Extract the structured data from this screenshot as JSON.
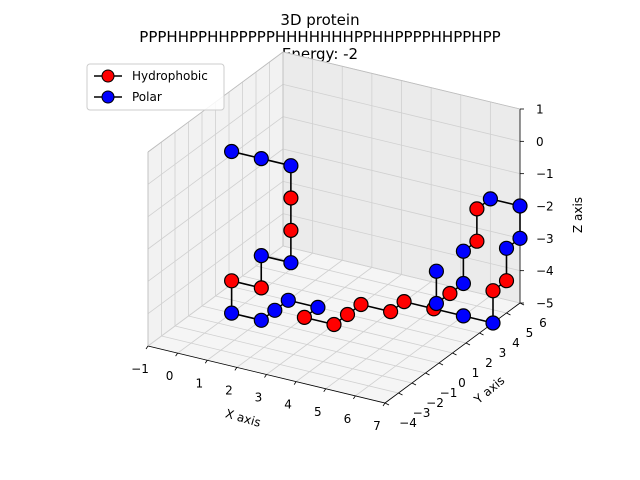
{
  "chart_data": {
    "type": "scatter",
    "title": "3D protein",
    "sequence": "PPPHHPPHHPPPPPHHHHHHHPPHHPPPPHHPPHPP",
    "subtitle": "Energy: -2",
    "xlabel": "X axis",
    "ylabel": "Y axis",
    "zlabel": "Z axis",
    "xlim": [
      -1,
      7
    ],
    "ylim": [
      -4,
      6
    ],
    "zlim": [
      -5,
      1
    ],
    "xticks": [
      "−1",
      "0",
      "1",
      "2",
      "3",
      "4",
      "5",
      "6",
      "7"
    ],
    "yticks": [
      "−4",
      "−3",
      "−2",
      "−1",
      "0",
      "1",
      "2",
      "3",
      "4",
      "5",
      "6"
    ],
    "zticks": [
      "−5",
      "−4",
      "−3",
      "−2",
      "−1",
      "0",
      "1"
    ],
    "legend": {
      "placement": "top-left",
      "entries": [
        {
          "label": "Hydrophobic",
          "color": "#ff0000"
        },
        {
          "label": "Polar",
          "color": "#0000ff"
        }
      ]
    },
    "grid": true,
    "colors": {
      "H": "#ff0000",
      "P": "#0000ff",
      "chain": "#000000"
    },
    "points": [
      [
        0,
        0,
        0
      ],
      [
        1,
        0,
        0
      ],
      [
        2,
        0,
        0
      ],
      [
        2,
        0,
        -1
      ],
      [
        2,
        0,
        -2
      ],
      [
        2,
        0,
        -3
      ],
      [
        1,
        0,
        -3
      ],
      [
        1,
        0,
        -4
      ],
      [
        0,
        0,
        -4
      ],
      [
        0,
        0,
        -5
      ],
      [
        1,
        0,
        -5
      ],
      [
        1,
        1,
        -5
      ],
      [
        1,
        2,
        -5
      ],
      [
        2,
        2,
        -5
      ],
      [
        2,
        1,
        -5
      ],
      [
        3,
        1,
        -5
      ],
      [
        3,
        2,
        -5
      ],
      [
        3,
        3,
        -5
      ],
      [
        4,
        3,
        -5
      ],
      [
        4,
        4,
        -5
      ],
      [
        5,
        4,
        -5
      ],
      [
        6,
        4,
        -5
      ],
      [
        7,
        4,
        -5
      ],
      [
        7,
        4,
        -4
      ],
      [
        7,
        5,
        -4
      ],
      [
        7,
        5,
        -3
      ],
      [
        7,
        6,
        -3
      ],
      [
        7,
        6,
        -2
      ],
      [
        6,
        6,
        -2
      ],
      [
        6,
        5,
        -2
      ],
      [
        6,
        5,
        -3
      ],
      [
        6,
        4,
        -3
      ],
      [
        6,
        4,
        -4
      ],
      [
        6,
        3,
        -4
      ],
      [
        6,
        2,
        -4
      ],
      [
        6,
        2,
        -3
      ]
    ]
  }
}
